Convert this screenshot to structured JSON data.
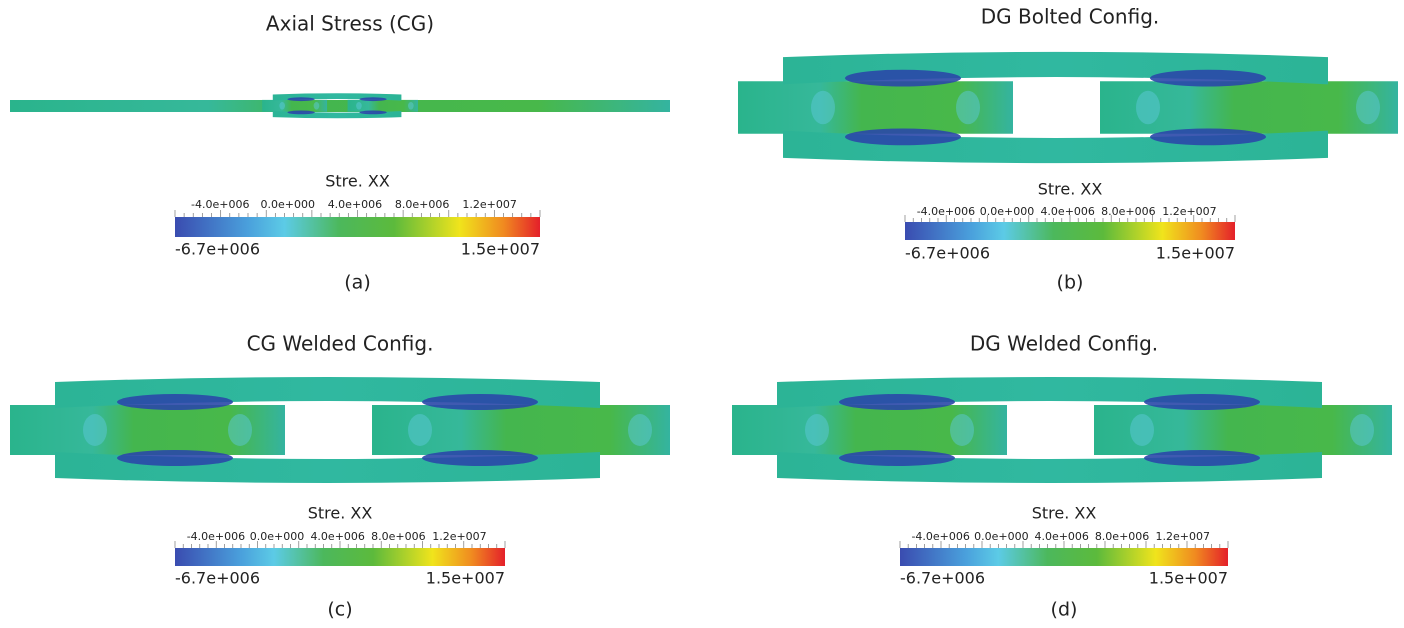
{
  "panels": [
    {
      "title": "Axial Stress (CG)",
      "colorbar": {
        "title": "Stre. XX",
        "tick_labels": [
          "-4.0e+006",
          "0.0e+000",
          "4.0e+006",
          "8.0e+006",
          "1.2e+007"
        ],
        "min_label": "-6.7e+006",
        "max_label": "1.5e+007"
      },
      "label": "(a)"
    },
    {
      "title": "DG Bolted Config.",
      "colorbar": {
        "title": "Stre. XX",
        "tick_labels": [
          "-4.0e+006",
          "0.0e+000",
          "4.0e+006",
          "8.0e+006",
          "1.2e+007"
        ],
        "min_label": "-6.7e+006",
        "max_label": "1.5e+007"
      },
      "label": "(b)"
    },
    {
      "title": "CG Welded Config.",
      "colorbar": {
        "title": "Stre. XX",
        "tick_labels": [
          "-4.0e+006",
          "0.0e+000",
          "4.0e+006",
          "8.0e+006",
          "1.2e+007"
        ],
        "min_label": "-6.7e+006",
        "max_label": "1.5e+007"
      },
      "label": "(c)"
    },
    {
      "title": "DG Welded Config.",
      "colorbar": {
        "title": "Stre. XX",
        "tick_labels": [
          "-4.0e+006",
          "0.0e+000",
          "4.0e+006",
          "8.0e+006",
          "1.2e+007"
        ],
        "min_label": "-6.7e+006",
        "max_label": "1.5e+007"
      },
      "label": "(d)"
    }
  ]
}
